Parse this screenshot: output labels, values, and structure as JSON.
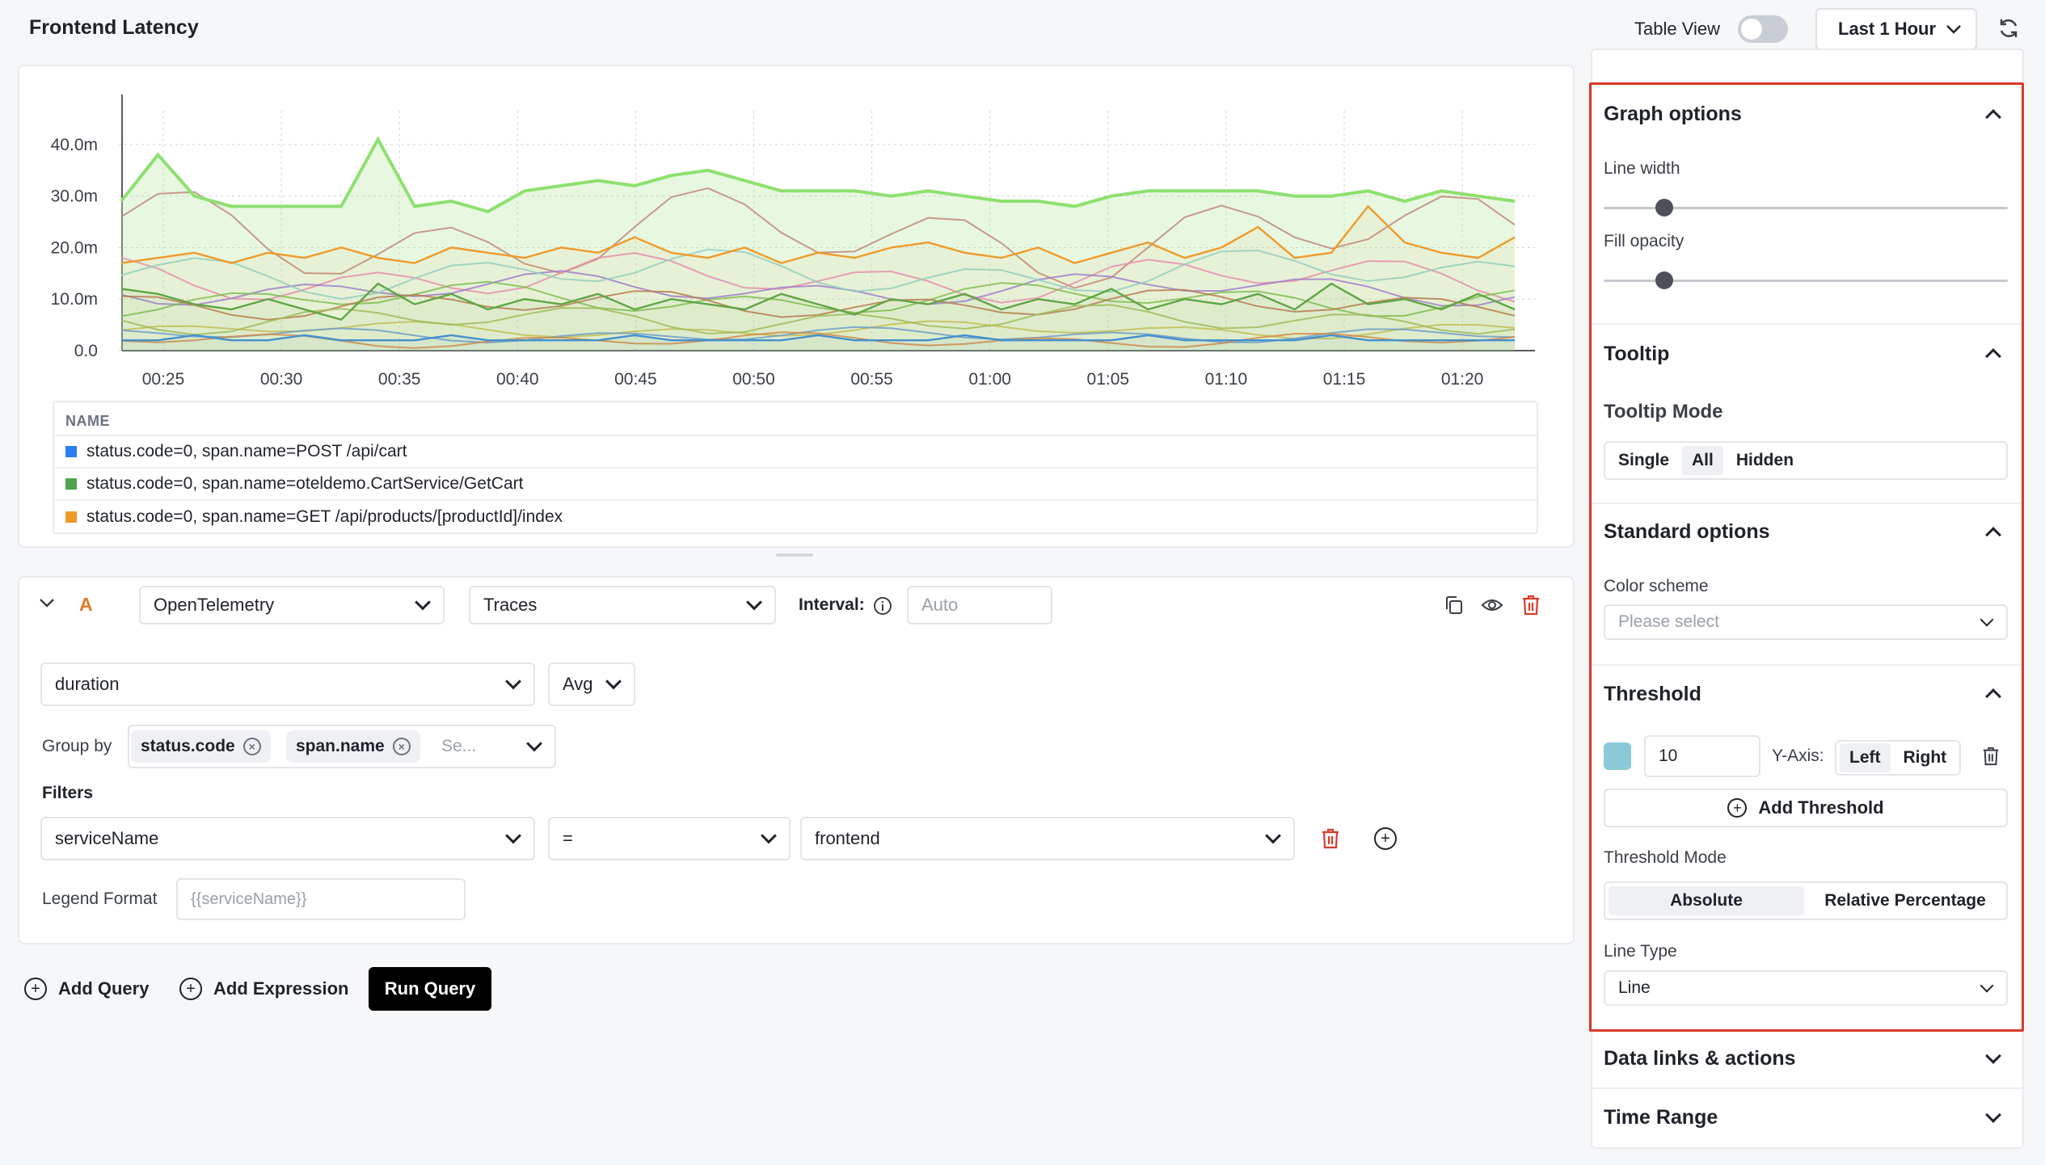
{
  "header": {
    "title": "Frontend Latency",
    "table_view_label": "Table View",
    "time_range": "Last 1 Hour"
  },
  "chart_data": {
    "type": "area",
    "y_tick_labels": [
      "0.0",
      "10.0m",
      "20.0m",
      "30.0m",
      "40.0m"
    ],
    "x_tick_labels": [
      "00:25",
      "00:30",
      "00:35",
      "00:40",
      "00:45",
      "00:50",
      "00:55",
      "01:00",
      "01:05",
      "01:10",
      "01:15",
      "01:20"
    ],
    "ylim": [
      0,
      45
    ],
    "grid": true,
    "series": [
      {
        "name": "status.code=0, span.name=POST /api/cart",
        "color": "#3b8fe0",
        "values": [
          2,
          2,
          3,
          2,
          2,
          3,
          2,
          2,
          2,
          3,
          2,
          2,
          2,
          2,
          3,
          2,
          2,
          2,
          2,
          3,
          2,
          2,
          2,
          3,
          2,
          2,
          2,
          2,
          3,
          2,
          2,
          2,
          2,
          3,
          2,
          2,
          2,
          2,
          2
        ]
      },
      {
        "name": "status.code=0, span.name=oteldemo.CartService/GetCart",
        "color": "#5aa64a",
        "values": [
          12,
          11,
          9,
          8,
          10,
          8,
          6,
          13,
          9,
          11,
          8,
          10,
          9,
          11,
          8,
          10,
          9,
          8,
          11,
          9,
          7,
          10,
          9,
          11,
          8,
          10,
          9,
          12,
          8,
          10,
          9,
          11,
          8,
          13,
          9,
          10,
          8,
          11,
          8
        ]
      },
      {
        "name": "status.code=0, span.name=GET /api/products/[productId]/index",
        "color": "#ef9a2b",
        "values": [
          17,
          18,
          19,
          17,
          19,
          18,
          20,
          18,
          17,
          20,
          19,
          18,
          20,
          19,
          22,
          19,
          18,
          20,
          17,
          19,
          18,
          20,
          21,
          19,
          18,
          20,
          17,
          19,
          21,
          18,
          20,
          24,
          18,
          19,
          28,
          21,
          19,
          18,
          22
        ]
      }
    ],
    "bg_series_top": [
      29,
      38,
      30,
      28,
      28,
      28,
      28,
      41,
      28,
      29,
      27,
      31,
      32,
      33,
      32,
      34,
      35,
      33,
      31,
      31,
      31,
      30,
      31,
      30,
      29,
      29,
      28,
      30,
      31,
      31,
      31,
      31,
      30,
      30,
      31,
      29,
      31,
      30,
      29
    ]
  },
  "legend": {
    "header": "NAME",
    "rows": [
      {
        "label": "status.code=0, span.name=POST /api/cart",
        "color": "#2d7ff0"
      },
      {
        "label": "status.code=0, span.name=oteldemo.CartService/GetCart",
        "color": "#4fa34a"
      },
      {
        "label": "status.code=0, span.name=GET /api/products/[productId]/index",
        "color": "#f09a2c"
      }
    ]
  },
  "query": {
    "letter": "A",
    "datasource": "OpenTelemetry",
    "type": "Traces",
    "interval_label": "Interval:",
    "interval_placeholder": "Auto",
    "metric": "duration",
    "aggregation": "Avg",
    "group_by_label": "Group by",
    "group_by_tags": [
      "status.code",
      "span.name"
    ],
    "group_by_placeholder": "Se...",
    "filters_label": "Filters",
    "filter_field": "serviceName",
    "filter_op": "=",
    "filter_value": "frontend",
    "legend_format_label": "Legend Format",
    "legend_format_placeholder": "{{serviceName}}"
  },
  "actions": {
    "add_query": "Add Query",
    "add_expression": "Add Expression",
    "run_query": "Run Query"
  },
  "options": {
    "graph": {
      "title": "Graph options",
      "line_width_label": "Line width",
      "line_width_value": 0.15,
      "fill_opacity_label": "Fill opacity",
      "fill_opacity_value": 0.15
    },
    "tooltip": {
      "title": "Tooltip",
      "mode_label": "Tooltip Mode",
      "modes": [
        "Single",
        "All",
        "Hidden"
      ],
      "selected": "All"
    },
    "standard": {
      "title": "Standard options",
      "color_scheme_label": "Color scheme",
      "color_scheme_placeholder": "Please select"
    },
    "threshold": {
      "title": "Threshold",
      "color": "#8cc8d8",
      "value": "10",
      "y_axis_label": "Y-Axis:",
      "y_axis_options": [
        "Left",
        "Right"
      ],
      "y_axis_selected": "Left",
      "add_label": "Add Threshold",
      "mode_label": "Threshold Mode",
      "modes": [
        "Absolute",
        "Relative Percentage"
      ],
      "mode_selected": "Absolute",
      "line_type_label": "Line Type",
      "line_type_value": "Line"
    },
    "data_links": {
      "title": "Data links & actions"
    },
    "time_range": {
      "title": "Time Range"
    }
  }
}
